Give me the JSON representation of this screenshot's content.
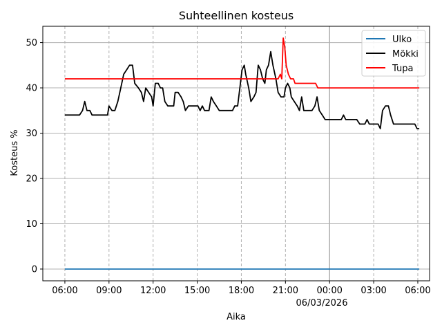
{
  "chart_data": {
    "type": "line",
    "title": "Suhteellinen kosteus",
    "xlabel": "Aika",
    "ylabel": "Kosteus %",
    "x_unit": "hours",
    "xlim": [
      4.5,
      30.8
    ],
    "ylim": [
      -2.6,
      53.6
    ],
    "x_ticks": [
      {
        "x": 6,
        "label": "06:00"
      },
      {
        "x": 9,
        "label": "09:00"
      },
      {
        "x": 12,
        "label": "12:00"
      },
      {
        "x": 15,
        "label": "15:00"
      },
      {
        "x": 18,
        "label": "18:00"
      },
      {
        "x": 21,
        "label": "21:00"
      },
      {
        "x": 24,
        "label": "00:00"
      },
      {
        "x": 27,
        "label": "03:00"
      },
      {
        "x": 30,
        "label": "06:00"
      }
    ],
    "date_label": "06/03/2026",
    "y_ticks": [
      0,
      10,
      20,
      30,
      40,
      50
    ],
    "vgrid_solid_at": 24,
    "grid": true,
    "legend_position": "top-right",
    "series": [
      {
        "name": "Ulko",
        "color": "#1f77b4",
        "points": [
          [
            6,
            0
          ],
          [
            30.1,
            0
          ]
        ]
      },
      {
        "name": "Mökki",
        "color": "#000000",
        "points": [
          [
            6,
            34
          ],
          [
            7,
            34
          ],
          [
            7.2,
            35
          ],
          [
            7.35,
            37
          ],
          [
            7.5,
            35
          ],
          [
            7.7,
            35
          ],
          [
            7.85,
            34
          ],
          [
            8,
            34
          ],
          [
            8.6,
            34
          ],
          [
            8.9,
            34
          ],
          [
            9,
            36
          ],
          [
            9.2,
            35
          ],
          [
            9.4,
            35
          ],
          [
            9.6,
            37
          ],
          [
            9.8,
            40
          ],
          [
            10,
            43
          ],
          [
            10.2,
            44
          ],
          [
            10.4,
            45
          ],
          [
            10.6,
            45
          ],
          [
            10.75,
            41
          ],
          [
            11,
            40
          ],
          [
            11.2,
            39
          ],
          [
            11.35,
            37
          ],
          [
            11.5,
            40
          ],
          [
            11.7,
            39
          ],
          [
            11.9,
            38
          ],
          [
            12,
            36
          ],
          [
            12.15,
            41
          ],
          [
            12.35,
            41
          ],
          [
            12.5,
            40
          ],
          [
            12.65,
            40
          ],
          [
            12.8,
            37
          ],
          [
            13,
            36
          ],
          [
            13.2,
            36
          ],
          [
            13.4,
            36
          ],
          [
            13.5,
            39
          ],
          [
            13.7,
            39
          ],
          [
            13.9,
            38
          ],
          [
            14.05,
            37
          ],
          [
            14.2,
            35
          ],
          [
            14.4,
            36
          ],
          [
            14.9,
            36
          ],
          [
            15.05,
            36
          ],
          [
            15.2,
            35
          ],
          [
            15.35,
            36
          ],
          [
            15.5,
            35
          ],
          [
            15.8,
            35
          ],
          [
            15.95,
            38
          ],
          [
            16.1,
            37
          ],
          [
            16.3,
            36
          ],
          [
            16.5,
            35
          ],
          [
            17,
            35
          ],
          [
            17.4,
            35
          ],
          [
            17.55,
            36
          ],
          [
            17.75,
            36
          ],
          [
            17.9,
            40
          ],
          [
            18.05,
            44
          ],
          [
            18.2,
            45
          ],
          [
            18.3,
            43
          ],
          [
            18.5,
            40
          ],
          [
            18.65,
            37
          ],
          [
            18.85,
            38
          ],
          [
            19,
            39
          ],
          [
            19.15,
            45
          ],
          [
            19.3,
            44
          ],
          [
            19.45,
            42
          ],
          [
            19.6,
            41
          ],
          [
            19.7,
            44
          ],
          [
            19.85,
            45
          ],
          [
            20,
            48
          ],
          [
            20.15,
            45
          ],
          [
            20.35,
            42
          ],
          [
            20.5,
            39
          ],
          [
            20.7,
            38
          ],
          [
            20.9,
            38
          ],
          [
            21,
            40
          ],
          [
            21.15,
            41
          ],
          [
            21.3,
            40
          ],
          [
            21.4,
            38
          ],
          [
            21.6,
            37
          ],
          [
            21.8,
            36
          ],
          [
            21.95,
            35
          ],
          [
            22.1,
            38
          ],
          [
            22.25,
            35
          ],
          [
            22.5,
            35
          ],
          [
            22.8,
            35
          ],
          [
            23,
            36
          ],
          [
            23.15,
            38
          ],
          [
            23.3,
            35
          ],
          [
            23.5,
            34
          ],
          [
            23.7,
            33
          ],
          [
            24,
            33
          ],
          [
            24.5,
            33
          ],
          [
            24.8,
            33
          ],
          [
            24.95,
            34
          ],
          [
            25.1,
            33
          ],
          [
            25.4,
            33
          ],
          [
            25.85,
            33
          ],
          [
            26.05,
            32
          ],
          [
            26.4,
            32
          ],
          [
            26.55,
            33
          ],
          [
            26.7,
            32
          ],
          [
            27,
            32
          ],
          [
            27.3,
            32
          ],
          [
            27.45,
            31
          ],
          [
            27.6,
            35
          ],
          [
            27.8,
            36
          ],
          [
            28,
            36
          ],
          [
            28.15,
            34
          ],
          [
            28.35,
            32
          ],
          [
            28.6,
            32
          ],
          [
            29,
            32
          ],
          [
            29.5,
            32
          ],
          [
            29.8,
            32
          ],
          [
            29.95,
            31
          ],
          [
            30.1,
            31
          ]
        ]
      },
      {
        "name": "Tupa",
        "color": "#ff0000",
        "points": [
          [
            6,
            42
          ],
          [
            20.5,
            42
          ],
          [
            20.65,
            43
          ],
          [
            20.75,
            42
          ],
          [
            20.85,
            51
          ],
          [
            20.95,
            49
          ],
          [
            21.05,
            45
          ],
          [
            21.2,
            43
          ],
          [
            21.35,
            42
          ],
          [
            21.55,
            42
          ],
          [
            21.65,
            41
          ],
          [
            22.3,
            41
          ],
          [
            22.9,
            41
          ],
          [
            23.05,
            41
          ],
          [
            23.2,
            40
          ],
          [
            24,
            40
          ],
          [
            30.1,
            40
          ]
        ]
      }
    ]
  }
}
